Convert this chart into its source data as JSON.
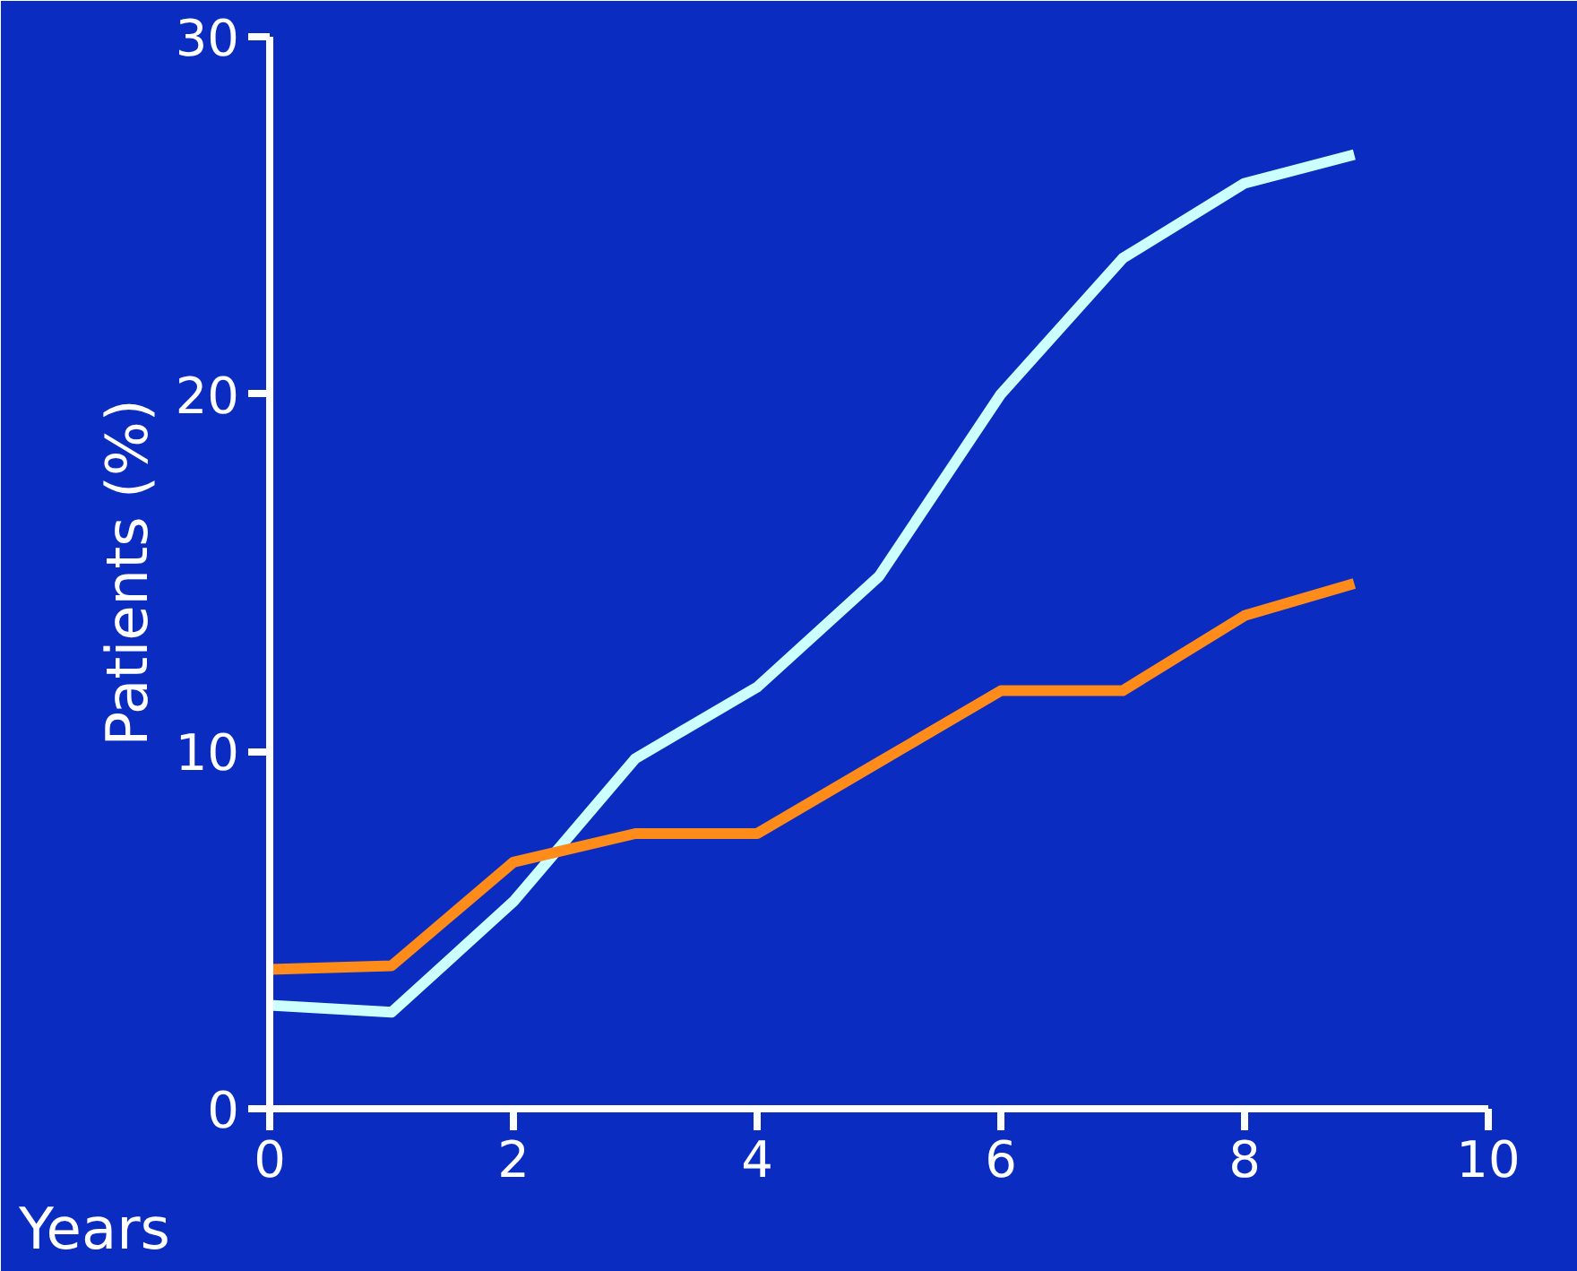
{
  "chart_data": {
    "type": "line",
    "xlabel": "Years",
    "ylabel": "Patients (%)",
    "xlim": [
      0,
      10
    ],
    "xticks": [
      0,
      2,
      4,
      6,
      8,
      10
    ],
    "ylim": [
      0,
      30
    ],
    "yticks": [
      0,
      10,
      20,
      30
    ],
    "line_style": "solid",
    "marker": "none",
    "series": [
      {
        "color": "#ccffff",
        "x": [
          0,
          1,
          2,
          3,
          4,
          5,
          6,
          7,
          8,
          8.9
        ],
        "values": [
          2.9,
          2.7,
          5.8,
          9.8,
          11.8,
          14.9,
          20,
          23.8,
          25.9,
          26.7
        ]
      },
      {
        "color": "#ff8c1a",
        "x": [
          0,
          1,
          2,
          3,
          4,
          5,
          6,
          7,
          8,
          8.9
        ],
        "values": [
          3.9,
          4,
          6.9,
          7.7,
          7.7,
          9.7,
          11.7,
          11.7,
          13.8,
          14.7
        ]
      }
    ]
  }
}
